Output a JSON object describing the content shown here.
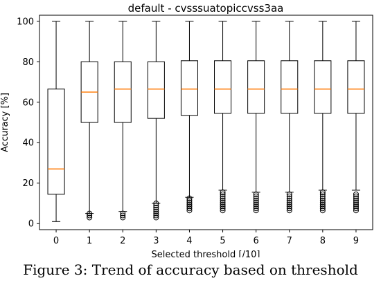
{
  "chart_data": {
    "type": "box",
    "title": "default - cvsssuatopiccvss3aa",
    "xlabel": "Selected threshold  [/10]",
    "ylabel": "Accuracy [%]",
    "categories": [
      "0",
      "1",
      "2",
      "3",
      "4",
      "5",
      "6",
      "7",
      "8",
      "9"
    ],
    "ylim": [
      -3,
      103
    ],
    "yticks": [
      0,
      20,
      40,
      60,
      80,
      100
    ],
    "boxes": [
      {
        "whislo": 1,
        "q1": 14.5,
        "med": 27,
        "q3": 66.5,
        "whishi": 100,
        "fliers": []
      },
      {
        "whislo": 5,
        "q1": 50,
        "med": 65,
        "q3": 80,
        "whishi": 100,
        "fliers": [
          3,
          4,
          5
        ]
      },
      {
        "whislo": 6,
        "q1": 50,
        "med": 66.5,
        "q3": 80,
        "whishi": 100,
        "fliers": [
          3,
          4,
          5
        ]
      },
      {
        "whislo": 10,
        "q1": 52,
        "med": 66.5,
        "q3": 80,
        "whishi": 100,
        "fliers": [
          3,
          4,
          5,
          6,
          7,
          8,
          9,
          10
        ]
      },
      {
        "whislo": 13,
        "q1": 53.5,
        "med": 66.5,
        "q3": 80.5,
        "whishi": 100,
        "fliers": [
          6.5,
          7.5,
          8.5,
          9.5,
          10.5,
          11.5,
          12.5
        ]
      },
      {
        "whislo": 16.5,
        "q1": 54.5,
        "med": 66.5,
        "q3": 80.5,
        "whishi": 100,
        "fliers": [
          6.5,
          7.5,
          8.5,
          9.5,
          10.5,
          11.5,
          12.5,
          13.5,
          14.5,
          15.5
        ]
      },
      {
        "whislo": 15.5,
        "q1": 54.5,
        "med": 66.5,
        "q3": 80.5,
        "whishi": 100,
        "fliers": [
          6.5,
          7.5,
          8.5,
          9.5,
          10.5,
          11.5,
          12.5,
          13.5,
          14.5
        ]
      },
      {
        "whislo": 15.5,
        "q1": 54.5,
        "med": 66.5,
        "q3": 80.5,
        "whishi": 100,
        "fliers": [
          6.5,
          7.5,
          8.5,
          9.5,
          10.5,
          11.5,
          12.5,
          13.5,
          14.5
        ]
      },
      {
        "whislo": 16.5,
        "q1": 54.5,
        "med": 66.5,
        "q3": 80.5,
        "whishi": 100,
        "fliers": [
          6.5,
          7.5,
          8.5,
          9.5,
          10.5,
          11.5,
          12.5,
          13.5,
          14.5,
          15.5
        ]
      },
      {
        "whislo": 16.5,
        "q1": 54.5,
        "med": 66.5,
        "q3": 80.5,
        "whishi": 100,
        "fliers": [
          6.5,
          7.5,
          8.5,
          9.5,
          10.5,
          11.5,
          12.5,
          13.5,
          14.5
        ]
      }
    ],
    "colors": {
      "box": "#000000",
      "median": "#ff7f0e",
      "flier": "#000000"
    },
    "grid": false,
    "legend": false
  },
  "caption": "Figure 3: Trend of accuracy based on threshold"
}
